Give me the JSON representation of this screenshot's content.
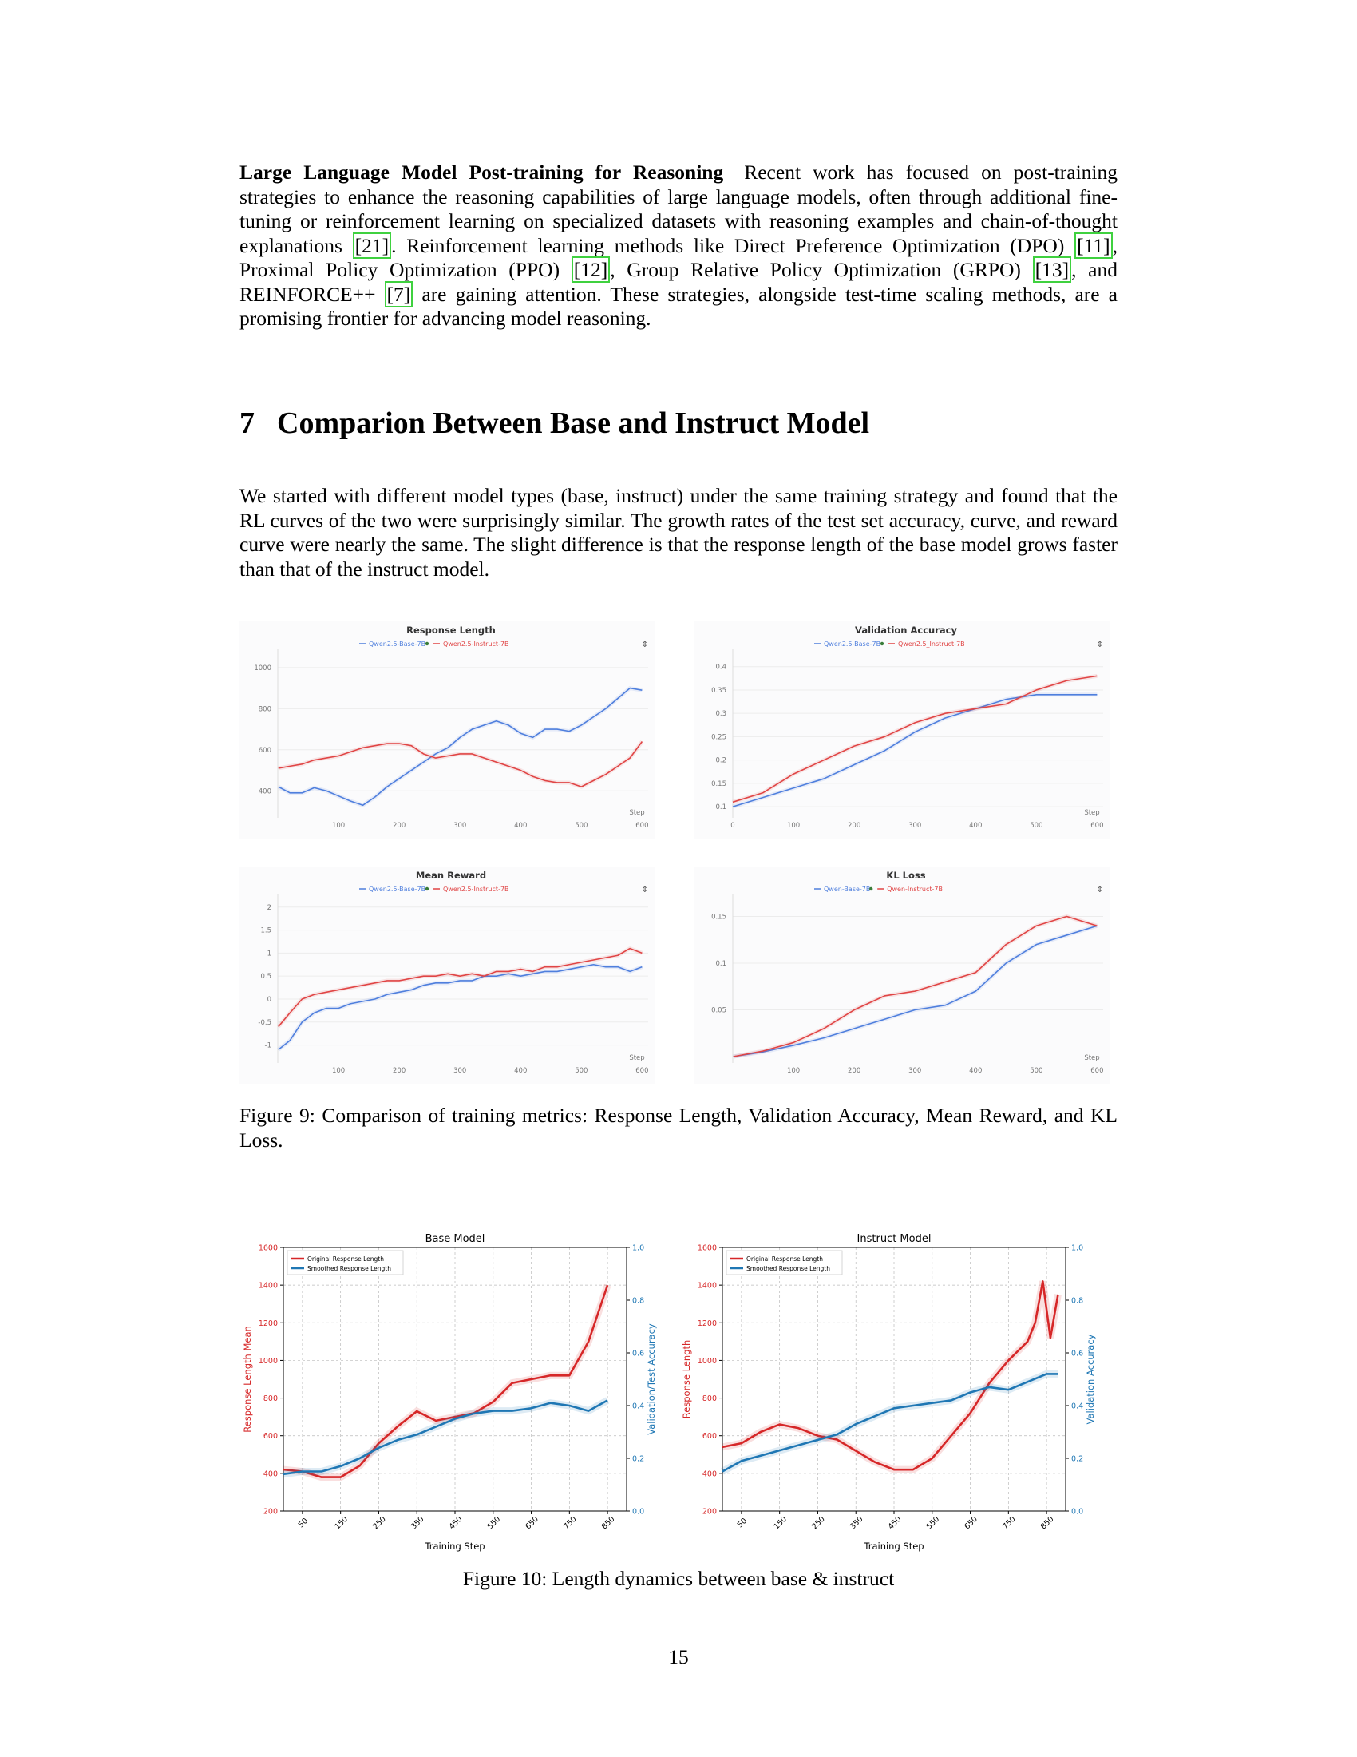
{
  "section_para": {
    "heading": "Large Language Model Post-training for Reasoning",
    "t1": "Recent work has focused on post-training strategies to enhance the reasoning capabilities of large language models, often through additional fine-tuning or reinforcement learning on specialized datasets with reasoning examples and chain-of-thought explanations ",
    "c1": "[21]",
    "t2": ". Reinforcement learning methods like Direct Preference Optimization (DPO) ",
    "c2": "[11]",
    "t3": ", Proximal Policy Optimization (PPO) ",
    "c3": "[12]",
    "t4": ", Group Relative Policy Optimization (GRPO) ",
    "c4": "[13]",
    "t5": ", and REINFORCE++ ",
    "c5": "[7]",
    "t6": " are gaining attention. These strategies, alongside test-time scaling methods, are a promising frontier for advancing model reasoning."
  },
  "section7": {
    "number": "7",
    "title": "Comparion Between Base and Instruct Model",
    "body": "We started with different model types (base, instruct) under the same training strategy and found that the RL curves of the two were surprisingly similar. The growth rates of the test set accuracy, curve, and reward curve were nearly the same. The slight difference is that the response length of the base model grows faster than that of the instruct model."
  },
  "figure9_caption": "Figure 9: Comparison of training metrics: Response Length, Validation Accuracy, Mean Reward, and KL Loss.",
  "figure10_caption": "Figure 10: Length dynamics between base & instruct",
  "page_number": "15",
  "colors": {
    "blue": "#4f7fdd",
    "red": "#e04545",
    "fig10_red": "#d62728",
    "fig10_blue": "#1f77b4"
  },
  "chart_data": [
    {
      "id": "rl",
      "type": "line",
      "title": "Response Length",
      "xlabel": "Step",
      "xlim": [
        0,
        610
      ],
      "ylim": [
        300,
        1050
      ],
      "xticks": [
        100,
        200,
        300,
        400,
        500,
        600
      ],
      "yticks": [
        400,
        600,
        800,
        1000
      ],
      "series": [
        {
          "name": "Qwen2.5-Base-7B",
          "color": "#4f7fdd",
          "x": [
            1,
            20,
            40,
            60,
            80,
            100,
            120,
            140,
            160,
            180,
            200,
            220,
            240,
            260,
            280,
            300,
            320,
            340,
            360,
            380,
            400,
            420,
            440,
            460,
            480,
            500,
            520,
            540,
            560,
            580,
            600
          ],
          "y": [
            420,
            390,
            390,
            415,
            400,
            375,
            350,
            330,
            370,
            420,
            460,
            500,
            540,
            580,
            610,
            660,
            700,
            720,
            740,
            720,
            680,
            660,
            700,
            700,
            690,
            720,
            760,
            800,
            850,
            900,
            890
          ]
        },
        {
          "name": "Qwen2.5-Instruct-7B",
          "color": "#e04545",
          "x": [
            1,
            20,
            40,
            60,
            80,
            100,
            120,
            140,
            160,
            180,
            200,
            220,
            240,
            260,
            280,
            300,
            320,
            340,
            360,
            380,
            400,
            420,
            440,
            460,
            480,
            500,
            520,
            540,
            560,
            580,
            600
          ],
          "y": [
            510,
            520,
            530,
            550,
            560,
            570,
            590,
            610,
            620,
            630,
            630,
            620,
            580,
            560,
            570,
            580,
            580,
            560,
            540,
            520,
            500,
            470,
            450,
            440,
            440,
            420,
            450,
            480,
            520,
            560,
            640
          ]
        }
      ]
    },
    {
      "id": "va",
      "type": "line",
      "title": "Validation Accuracy",
      "xlabel": "Step",
      "xlim": [
        0,
        610
      ],
      "ylim": [
        0.09,
        0.42
      ],
      "xticks": [
        0,
        100,
        200,
        300,
        400,
        500,
        600
      ],
      "yticks": [
        0.1,
        0.15,
        0.2,
        0.25,
        0.3,
        0.35,
        0.4
      ],
      "ytick_labels": [
        "0.1",
        "0.15",
        "0.2",
        "0.25",
        "0.3",
        "0.35",
        "0.4"
      ],
      "series": [
        {
          "name": "Qwen2.5-Base-7B",
          "color": "#4f7fdd",
          "x": [
            0,
            50,
            100,
            150,
            200,
            250,
            300,
            350,
            400,
            450,
            500,
            550,
            600
          ],
          "y": [
            0.1,
            0.12,
            0.14,
            0.16,
            0.19,
            0.22,
            0.26,
            0.29,
            0.31,
            0.33,
            0.34,
            0.34,
            0.34
          ]
        },
        {
          "name": "Qwen2.5_Instruct-7B",
          "color": "#e04545",
          "x": [
            0,
            50,
            100,
            150,
            200,
            250,
            300,
            350,
            400,
            450,
            500,
            550,
            600
          ],
          "y": [
            0.11,
            0.13,
            0.17,
            0.2,
            0.23,
            0.25,
            0.28,
            0.3,
            0.31,
            0.32,
            0.35,
            0.37,
            0.38
          ]
        }
      ]
    },
    {
      "id": "mr",
      "type": "line",
      "title": "Mean Reward",
      "xlabel": "Step",
      "xlim": [
        0,
        610
      ],
      "ylim": [
        -1.25,
        2.1
      ],
      "xticks": [
        100,
        200,
        300,
        400,
        500,
        600
      ],
      "yticks": [
        -1,
        -0.5,
        0,
        0.5,
        1,
        1.5,
        2
      ],
      "ytick_labels": [
        "-1",
        "-0.5",
        "0",
        "0.5",
        "1",
        "1.5",
        "2"
      ],
      "series": [
        {
          "name": "Qwen2.5-Base-7B",
          "color": "#4f7fdd",
          "x": [
            1,
            20,
            40,
            60,
            80,
            100,
            120,
            140,
            160,
            180,
            200,
            220,
            240,
            260,
            280,
            300,
            320,
            340,
            360,
            380,
            400,
            420,
            440,
            460,
            480,
            500,
            520,
            540,
            560,
            580,
            600
          ],
          "y": [
            -1.1,
            -0.9,
            -0.5,
            -0.3,
            -0.2,
            -0.2,
            -0.1,
            -0.05,
            0,
            0.1,
            0.15,
            0.2,
            0.3,
            0.35,
            0.35,
            0.4,
            0.4,
            0.5,
            0.5,
            0.55,
            0.5,
            0.55,
            0.6,
            0.6,
            0.65,
            0.7,
            0.75,
            0.7,
            0.7,
            0.6,
            0.7
          ]
        },
        {
          "name": "Qwen2.5-Instruct-7B",
          "color": "#e04545",
          "x": [
            1,
            20,
            40,
            60,
            80,
            100,
            120,
            140,
            160,
            180,
            200,
            220,
            240,
            260,
            280,
            300,
            320,
            340,
            360,
            380,
            400,
            420,
            440,
            460,
            480,
            500,
            520,
            540,
            560,
            580,
            600
          ],
          "y": [
            -0.6,
            -0.3,
            0,
            0.1,
            0.15,
            0.2,
            0.25,
            0.3,
            0.35,
            0.4,
            0.4,
            0.45,
            0.5,
            0.5,
            0.55,
            0.5,
            0.55,
            0.5,
            0.6,
            0.6,
            0.65,
            0.6,
            0.7,
            0.7,
            0.75,
            0.8,
            0.85,
            0.9,
            0.95,
            1.1,
            1.0
          ]
        }
      ]
    },
    {
      "id": "kl",
      "type": "line",
      "title": "KL Loss",
      "xlabel": "Step",
      "xlim": [
        0,
        610
      ],
      "ylim": [
        0,
        0.165
      ],
      "xticks": [
        100,
        200,
        300,
        400,
        500,
        600
      ],
      "yticks": [
        0.05,
        0.1,
        0.15
      ],
      "ytick_labels": [
        "0.05",
        "0.1",
        "0.15"
      ],
      "series": [
        {
          "name": "Qwen-Base-7B",
          "color": "#4f7fdd",
          "x": [
            1,
            50,
            100,
            150,
            200,
            250,
            300,
            350,
            400,
            450,
            500,
            550,
            600
          ],
          "y": [
            0,
            0.005,
            0.012,
            0.02,
            0.03,
            0.04,
            0.05,
            0.055,
            0.07,
            0.1,
            0.12,
            0.13,
            0.14
          ]
        },
        {
          "name": "Qwen-Instruct-7B",
          "color": "#e04545",
          "x": [
            1,
            50,
            100,
            150,
            200,
            250,
            300,
            350,
            400,
            450,
            500,
            550,
            600
          ],
          "y": [
            0,
            0.006,
            0.015,
            0.03,
            0.05,
            0.065,
            0.07,
            0.08,
            0.09,
            0.12,
            0.14,
            0.15,
            0.14
          ]
        }
      ]
    },
    {
      "id": "base",
      "type": "line",
      "title": "Base Model",
      "xlabel": "Training Step",
      "ylabel": "Response Length Mean",
      "y2label": "Validation/Test Accuracy",
      "xlim": [
        0,
        900
      ],
      "ylim": [
        200,
        1600
      ],
      "y2lim": [
        0,
        1.0
      ],
      "xticks": [
        50,
        150,
        250,
        350,
        450,
        550,
        650,
        750,
        850
      ],
      "yticks": [
        200,
        400,
        600,
        800,
        1000,
        1200,
        1400,
        1600
      ],
      "y2ticks": [
        0,
        0.2,
        0.4,
        0.6,
        0.8,
        1.0
      ],
      "y2tick_labels": [
        "0.0",
        "0.2",
        "0.4",
        "0.6",
        "0.8",
        "1.0"
      ],
      "legend": "top-left",
      "series": [
        {
          "name": "Original Response Length",
          "color": "#d62728",
          "axis": "left",
          "x": [
            0,
            50,
            100,
            150,
            200,
            250,
            300,
            350,
            400,
            450,
            500,
            550,
            600,
            650,
            700,
            750,
            800,
            850
          ],
          "y": [
            420,
            410,
            380,
            380,
            440,
            560,
            650,
            730,
            680,
            700,
            720,
            780,
            880,
            900,
            920,
            920,
            1100,
            1400
          ]
        },
        {
          "name": "Smoothed Response Length",
          "color": "#1f77b4",
          "axis": "right",
          "x": [
            0,
            50,
            100,
            150,
            200,
            250,
            300,
            350,
            400,
            450,
            500,
            550,
            600,
            650,
            700,
            750,
            800,
            850
          ],
          "y": [
            0.14,
            0.15,
            0.15,
            0.17,
            0.2,
            0.24,
            0.27,
            0.29,
            0.32,
            0.35,
            0.37,
            0.38,
            0.38,
            0.39,
            0.41,
            0.4,
            0.38,
            0.42
          ]
        }
      ]
    },
    {
      "id": "instr",
      "type": "line",
      "title": "Instruct Model",
      "xlabel": "Training Step",
      "ylabel": "Response Length",
      "y2label": "Validation Accuracy",
      "xlim": [
        0,
        900
      ],
      "ylim": [
        200,
        1600
      ],
      "y2lim": [
        0,
        1.0
      ],
      "xticks": [
        50,
        150,
        250,
        350,
        450,
        550,
        650,
        750,
        850
      ],
      "yticks": [
        200,
        400,
        600,
        800,
        1000,
        1200,
        1400,
        1600
      ],
      "y2ticks": [
        0,
        0.2,
        0.4,
        0.6,
        0.8,
        1.0
      ],
      "y2tick_labels": [
        "0.0",
        "0.2",
        "0.4",
        "0.6",
        "0.8",
        "1.0"
      ],
      "legend": "top-left",
      "series": [
        {
          "name": "Original Response Length",
          "color": "#d62728",
          "axis": "left",
          "x": [
            0,
            50,
            100,
            150,
            200,
            250,
            300,
            350,
            400,
            450,
            500,
            550,
            600,
            650,
            700,
            750,
            800,
            820,
            840,
            860,
            880
          ],
          "y": [
            540,
            560,
            620,
            660,
            640,
            600,
            580,
            520,
            460,
            420,
            420,
            480,
            600,
            720,
            880,
            1000,
            1100,
            1200,
            1420,
            1120,
            1350
          ]
        },
        {
          "name": "Smoothed Response Length",
          "color": "#1f77b4",
          "axis": "right",
          "x": [
            0,
            50,
            100,
            150,
            200,
            250,
            300,
            350,
            400,
            450,
            500,
            550,
            600,
            650,
            700,
            750,
            800,
            850,
            880
          ],
          "y": [
            0.15,
            0.19,
            0.21,
            0.23,
            0.25,
            0.27,
            0.29,
            0.33,
            0.36,
            0.39,
            0.4,
            0.41,
            0.42,
            0.45,
            0.47,
            0.46,
            0.49,
            0.52,
            0.52
          ]
        }
      ]
    }
  ]
}
